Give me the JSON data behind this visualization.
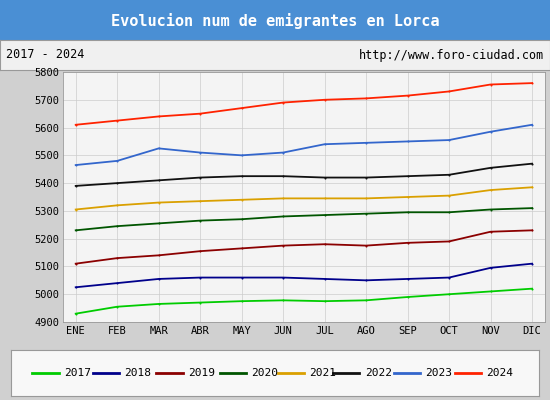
{
  "title": "Evolucion num de emigrantes en Lorca",
  "title_color": "#ffffff",
  "title_bg_color": "#4a8fd4",
  "subtitle_left": "2017 - 2024",
  "subtitle_right": "http://www.foro-ciudad.com",
  "months": [
    "ENE",
    "FEB",
    "MAR",
    "ABR",
    "MAY",
    "JUN",
    "JUL",
    "AGO",
    "SEP",
    "OCT",
    "NOV",
    "DIC"
  ],
  "ylim": [
    4900,
    5800
  ],
  "yticks": [
    4900,
    5000,
    5100,
    5200,
    5300,
    5400,
    5500,
    5600,
    5700,
    5800
  ],
  "series": {
    "2017": {
      "color": "#00cc00",
      "data": [
        4930,
        4955,
        4965,
        4970,
        4975,
        4978,
        4975,
        4978,
        4990,
        5000,
        5010,
        5020
      ]
    },
    "2018": {
      "color": "#00008b",
      "data": [
        5025,
        5040,
        5055,
        5060,
        5060,
        5060,
        5055,
        5050,
        5055,
        5060,
        5095,
        5110
      ]
    },
    "2019": {
      "color": "#8b0000",
      "data": [
        5110,
        5130,
        5140,
        5155,
        5165,
        5175,
        5180,
        5175,
        5185,
        5190,
        5225,
        5230
      ]
    },
    "2020": {
      "color": "#005500",
      "data": [
        5230,
        5245,
        5255,
        5265,
        5270,
        5280,
        5285,
        5290,
        5295,
        5295,
        5305,
        5310
      ]
    },
    "2021": {
      "color": "#daa000",
      "data": [
        5305,
        5320,
        5330,
        5335,
        5340,
        5345,
        5345,
        5345,
        5350,
        5355,
        5375,
        5385
      ]
    },
    "2022": {
      "color": "#111111",
      "data": [
        5390,
        5400,
        5410,
        5420,
        5425,
        5425,
        5420,
        5420,
        5425,
        5430,
        5455,
        5470
      ]
    },
    "2023": {
      "color": "#3366cc",
      "data": [
        5465,
        5480,
        5525,
        5510,
        5500,
        5510,
        5540,
        5545,
        5550,
        5555,
        5585,
        5610
      ]
    },
    "2024": {
      "color": "#ff2200",
      "data": [
        5610,
        5625,
        5640,
        5650,
        5670,
        5690,
        5700,
        5705,
        5715,
        5730,
        5755,
        5760
      ]
    }
  }
}
